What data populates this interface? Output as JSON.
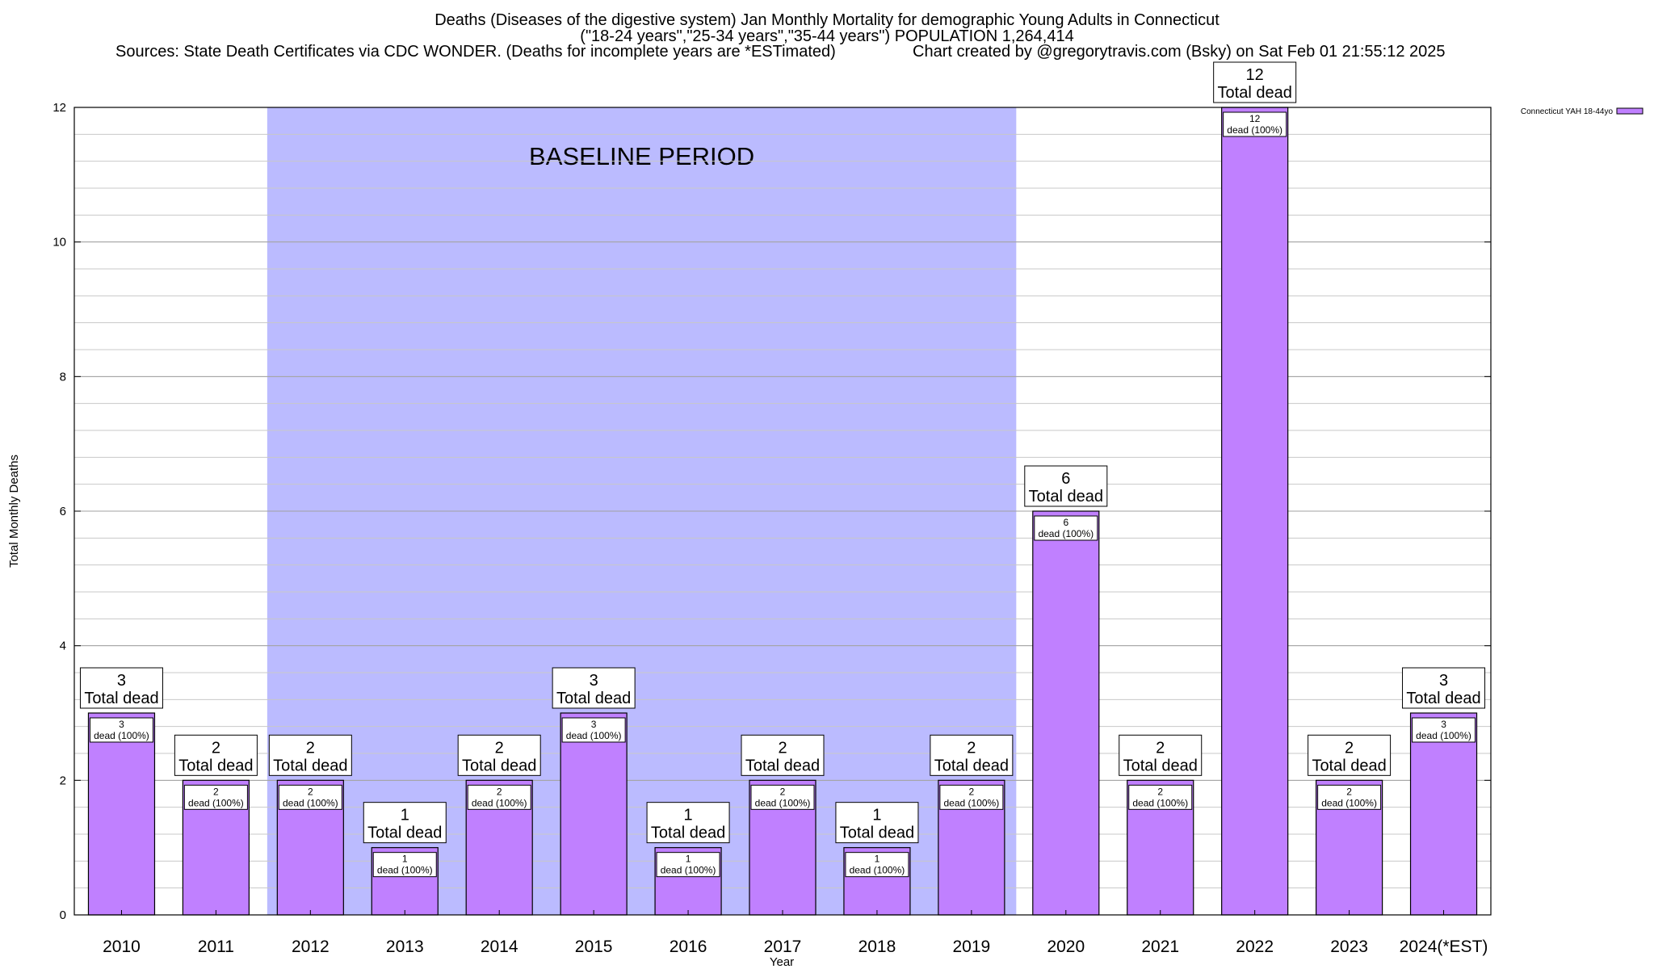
{
  "header": {
    "title_line1": "Deaths (Diseases of the digestive system) Jan Monthly Mortality for demographic Young Adults in Connecticut",
    "title_line2": "(\"18-24 years\",\"25-34 years\",\"35-44 years\") POPULATION 1,264,414",
    "sources": "Sources: State Death Certificates via CDC WONDER. (Deaths for incomplete years are *ESTimated)",
    "credit": "Chart created by @gregorytravis.com (Bsky) on Sat Feb 01 21:55:12 2025"
  },
  "chart_data": {
    "type": "bar",
    "xlabel": "Year",
    "ylabel": "Total Monthly Deaths",
    "ylim": [
      0,
      12
    ],
    "y_ticks": [
      0,
      2,
      4,
      6,
      8,
      10,
      12
    ],
    "grid": true,
    "legend_position": "top-right",
    "categories": [
      "2010",
      "2011",
      "2012",
      "2013",
      "2014",
      "2015",
      "2016",
      "2017",
      "2018",
      "2019",
      "2020",
      "2021",
      "2022",
      "2023",
      "2024(*EST)"
    ],
    "series": [
      {
        "name": "Connecticut YAH 18-44yo",
        "color": "#c080ff",
        "values": [
          3,
          2,
          2,
          1,
          2,
          3,
          1,
          2,
          1,
          2,
          6,
          2,
          12,
          2,
          3
        ]
      }
    ],
    "total_labels": [
      "3",
      "2",
      "2",
      "1",
      "2",
      "3",
      "1",
      "2",
      "1",
      "2",
      "6",
      "2",
      "12",
      "2",
      "3"
    ],
    "total_suffix": "Total dead",
    "inner_labels": [
      "3",
      "2",
      "2",
      "1",
      "2",
      "3",
      "1",
      "2",
      "1",
      "2",
      "6",
      "2",
      "12",
      "2",
      "3"
    ],
    "inner_suffix": "dead (100%)",
    "baseline": {
      "label": "BASELINE PERIOD",
      "start_category": "2012",
      "end_category": "2019",
      "color": "#bbbbff"
    }
  }
}
